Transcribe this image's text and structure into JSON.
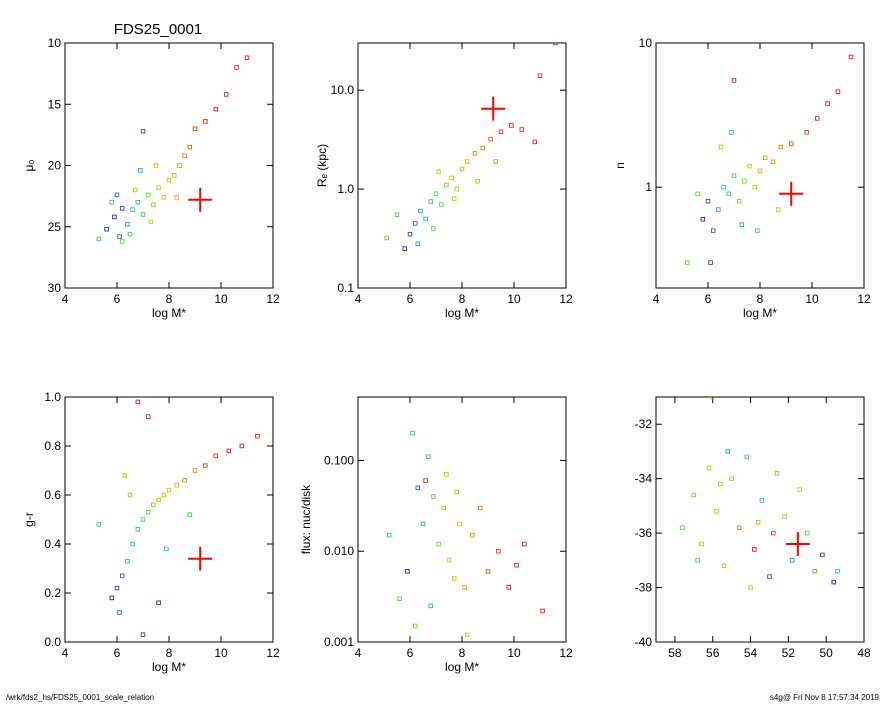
{
  "figure_title": "FDS25_0001",
  "footer": {
    "left": "/wrk/fds2_hs/FDS25_0001_scale_relation",
    "right": "s4g@  Fri Nov  8 17:57:34 2019"
  },
  "colors": {
    "marker": "#ff0000",
    "axes": "#000000"
  },
  "chart_data": [
    {
      "type": "scatter",
      "xlabel": "log M*",
      "ylabel": "μ₀",
      "xlim": [
        4,
        12
      ],
      "ylim": [
        30,
        10
      ],
      "x_ticks": [
        "4",
        "6",
        "8",
        "10",
        "12"
      ],
      "y_ticks": [
        "10",
        "15",
        "20",
        "25",
        "30"
      ],
      "marker": {
        "x": 9.2,
        "y": 22.8
      },
      "points": [
        {
          "x": 5.6,
          "y": 25.2,
          "c": "#2020c8"
        },
        {
          "x": 5.9,
          "y": 24.2,
          "c": "#2020c8"
        },
        {
          "x": 6.2,
          "y": 23.5,
          "c": "#3040d0"
        },
        {
          "x": 6.0,
          "y": 22.4,
          "c": "#3060e0"
        },
        {
          "x": 6.4,
          "y": 24.8,
          "c": "#20a0e0"
        },
        {
          "x": 6.6,
          "y": 23.6,
          "c": "#20c0c0"
        },
        {
          "x": 6.8,
          "y": 23.0,
          "c": "#20c0c0"
        },
        {
          "x": 7.0,
          "y": 24.0,
          "c": "#30d060"
        },
        {
          "x": 6.5,
          "y": 25.6,
          "c": "#40e040"
        },
        {
          "x": 7.2,
          "y": 22.4,
          "c": "#60e020"
        },
        {
          "x": 7.4,
          "y": 23.2,
          "c": "#80e000"
        },
        {
          "x": 7.6,
          "y": 21.8,
          "c": "#a0e000"
        },
        {
          "x": 7.8,
          "y": 22.6,
          "c": "#c0d000"
        },
        {
          "x": 8.0,
          "y": 21.2,
          "c": "#d0c000"
        },
        {
          "x": 8.2,
          "y": 20.8,
          "c": "#e0b000"
        },
        {
          "x": 8.4,
          "y": 20.0,
          "c": "#e09000"
        },
        {
          "x": 8.6,
          "y": 19.2,
          "c": "#e08000"
        },
        {
          "x": 8.8,
          "y": 18.5,
          "c": "#e06000"
        },
        {
          "x": 9.0,
          "y": 17.0,
          "c": "#e04000"
        },
        {
          "x": 9.4,
          "y": 16.4,
          "c": "#e03000"
        },
        {
          "x": 9.8,
          "y": 15.4,
          "c": "#e02020"
        },
        {
          "x": 10.2,
          "y": 14.2,
          "c": "#e02020"
        },
        {
          "x": 10.6,
          "y": 12.0,
          "c": "#e02020"
        },
        {
          "x": 11.0,
          "y": 11.2,
          "c": "#e02020"
        },
        {
          "x": 11.5,
          "y": 9.2,
          "c": "#e02020"
        },
        {
          "x": 7.0,
          "y": 17.2,
          "c": "#3040d0"
        },
        {
          "x": 6.9,
          "y": 20.4,
          "c": "#20a0e0"
        },
        {
          "x": 7.5,
          "y": 20.0,
          "c": "#d0c000"
        },
        {
          "x": 5.3,
          "y": 26.0,
          "c": "#30d060"
        },
        {
          "x": 6.2,
          "y": 26.2,
          "c": "#60e020"
        },
        {
          "x": 7.3,
          "y": 24.6,
          "c": "#c0d000"
        },
        {
          "x": 8.3,
          "y": 22.6,
          "c": "#e0b000"
        },
        {
          "x": 6.7,
          "y": 22.0,
          "c": "#c0d000"
        },
        {
          "x": 5.8,
          "y": 23.0,
          "c": "#20c0c0"
        },
        {
          "x": 6.1,
          "y": 25.8,
          "c": "#3060e0"
        }
      ]
    },
    {
      "type": "scatter",
      "xlabel": "log M*",
      "ylabel": "Rₑ (kpc)",
      "yscale": "log",
      "xlim": [
        4,
        12
      ],
      "ylim": [
        0.1,
        30
      ],
      "x_ticks": [
        "4",
        "6",
        "8",
        "10",
        "12"
      ],
      "y_ticks": [
        "0.1",
        "1.0",
        "10.0"
      ],
      "marker": {
        "x": 9.2,
        "y": 6.5
      },
      "points": [
        {
          "x": 5.8,
          "y": 0.25,
          "c": "#2020c8"
        },
        {
          "x": 6.0,
          "y": 0.35,
          "c": "#3040d0"
        },
        {
          "x": 6.2,
          "y": 0.45,
          "c": "#3060e0"
        },
        {
          "x": 6.4,
          "y": 0.6,
          "c": "#20a0e0"
        },
        {
          "x": 6.6,
          "y": 0.5,
          "c": "#20c0c0"
        },
        {
          "x": 6.8,
          "y": 0.75,
          "c": "#30d060"
        },
        {
          "x": 7.0,
          "y": 0.9,
          "c": "#40e040"
        },
        {
          "x": 7.2,
          "y": 0.7,
          "c": "#60e020"
        },
        {
          "x": 7.4,
          "y": 1.1,
          "c": "#80e000"
        },
        {
          "x": 7.6,
          "y": 1.3,
          "c": "#a0e000"
        },
        {
          "x": 7.8,
          "y": 1.0,
          "c": "#c0d000"
        },
        {
          "x": 8.0,
          "y": 1.6,
          "c": "#d0c000"
        },
        {
          "x": 8.2,
          "y": 1.9,
          "c": "#e0b000"
        },
        {
          "x": 8.5,
          "y": 2.3,
          "c": "#e09000"
        },
        {
          "x": 8.8,
          "y": 2.6,
          "c": "#e08000"
        },
        {
          "x": 9.1,
          "y": 3.2,
          "c": "#e06000"
        },
        {
          "x": 9.5,
          "y": 3.8,
          "c": "#e04000"
        },
        {
          "x": 9.9,
          "y": 4.4,
          "c": "#e02020"
        },
        {
          "x": 10.3,
          "y": 4.0,
          "c": "#e02020"
        },
        {
          "x": 10.8,
          "y": 3.0,
          "c": "#e02020"
        },
        {
          "x": 11.0,
          "y": 14.0,
          "c": "#e02020"
        },
        {
          "x": 11.6,
          "y": 30.0,
          "c": "#e02020"
        },
        {
          "x": 5.5,
          "y": 0.55,
          "c": "#30d060"
        },
        {
          "x": 6.3,
          "y": 0.28,
          "c": "#20a0e0"
        },
        {
          "x": 7.1,
          "y": 1.5,
          "c": "#c0d000"
        },
        {
          "x": 6.9,
          "y": 0.4,
          "c": "#40e040"
        },
        {
          "x": 7.7,
          "y": 0.8,
          "c": "#a0e000"
        },
        {
          "x": 8.6,
          "y": 1.2,
          "c": "#e0b000"
        },
        {
          "x": 5.1,
          "y": 0.32,
          "c": "#60e020"
        },
        {
          "x": 9.3,
          "y": 1.9,
          "c": "#e09000"
        }
      ]
    },
    {
      "type": "scatter",
      "xlabel": "log M*",
      "ylabel": "n",
      "yscale": "log",
      "xlim": [
        4,
        12
      ],
      "ylim": [
        0.2,
        10
      ],
      "x_ticks": [
        "4",
        "6",
        "8",
        "10",
        "12"
      ],
      "y_ticks": [
        "1",
        "10"
      ],
      "marker": {
        "x": 9.2,
        "y": 0.9
      },
      "points": [
        {
          "x": 5.8,
          "y": 0.6,
          "c": "#2020c8"
        },
        {
          "x": 6.0,
          "y": 0.8,
          "c": "#3040d0"
        },
        {
          "x": 6.2,
          "y": 0.5,
          "c": "#3060e0"
        },
        {
          "x": 6.4,
          "y": 0.7,
          "c": "#20a0e0"
        },
        {
          "x": 6.6,
          "y": 1.0,
          "c": "#20c0c0"
        },
        {
          "x": 6.8,
          "y": 0.9,
          "c": "#30d060"
        },
        {
          "x": 7.0,
          "y": 1.2,
          "c": "#40e040"
        },
        {
          "x": 7.2,
          "y": 0.8,
          "c": "#60e020"
        },
        {
          "x": 7.4,
          "y": 1.1,
          "c": "#80e000"
        },
        {
          "x": 7.6,
          "y": 1.4,
          "c": "#a0e000"
        },
        {
          "x": 7.8,
          "y": 1.0,
          "c": "#c0d000"
        },
        {
          "x": 8.0,
          "y": 1.3,
          "c": "#d0c000"
        },
        {
          "x": 8.2,
          "y": 1.6,
          "c": "#e0b000"
        },
        {
          "x": 8.5,
          "y": 1.5,
          "c": "#e09000"
        },
        {
          "x": 8.8,
          "y": 1.9,
          "c": "#e08000"
        },
        {
          "x": 9.2,
          "y": 2.0,
          "c": "#e06000"
        },
        {
          "x": 9.8,
          "y": 2.4,
          "c": "#e04000"
        },
        {
          "x": 10.2,
          "y": 3.0,
          "c": "#e02020"
        },
        {
          "x": 10.6,
          "y": 3.8,
          "c": "#e02020"
        },
        {
          "x": 11.0,
          "y": 4.6,
          "c": "#e02020"
        },
        {
          "x": 11.5,
          "y": 8.0,
          "c": "#e02020"
        },
        {
          "x": 7.0,
          "y": 5.5,
          "c": "#e02020"
        },
        {
          "x": 5.2,
          "y": 0.3,
          "c": "#40e040"
        },
        {
          "x": 6.1,
          "y": 0.3,
          "c": "#3040d0"
        },
        {
          "x": 6.9,
          "y": 2.4,
          "c": "#20c0c0"
        },
        {
          "x": 7.9,
          "y": 0.5,
          "c": "#40e040"
        },
        {
          "x": 5.6,
          "y": 0.9,
          "c": "#60e020"
        },
        {
          "x": 8.7,
          "y": 0.7,
          "c": "#c0d000"
        },
        {
          "x": 6.5,
          "y": 1.9,
          "c": "#e0b000"
        },
        {
          "x": 7.3,
          "y": 0.55,
          "c": "#20a0e0"
        }
      ]
    },
    {
      "type": "scatter",
      "xlabel": "log M*",
      "ylabel": "g-r",
      "xlim": [
        4,
        12
      ],
      "ylim": [
        0.0,
        1.0
      ],
      "x_ticks": [
        "4",
        "6",
        "8",
        "10",
        "12"
      ],
      "y_ticks": [
        "0.0",
        "0.2",
        "0.4",
        "0.6",
        "0.8",
        "1.0"
      ],
      "marker": {
        "x": 9.2,
        "y": 0.34
      },
      "points": [
        {
          "x": 5.8,
          "y": 0.18,
          "c": "#2020c8"
        },
        {
          "x": 6.0,
          "y": 0.22,
          "c": "#3040d0"
        },
        {
          "x": 6.2,
          "y": 0.27,
          "c": "#3060e0"
        },
        {
          "x": 6.4,
          "y": 0.33,
          "c": "#20a0e0"
        },
        {
          "x": 6.6,
          "y": 0.4,
          "c": "#20c0c0"
        },
        {
          "x": 6.8,
          "y": 0.46,
          "c": "#30d060"
        },
        {
          "x": 7.0,
          "y": 0.5,
          "c": "#40e040"
        },
        {
          "x": 7.2,
          "y": 0.53,
          "c": "#60e020"
        },
        {
          "x": 7.4,
          "y": 0.56,
          "c": "#80e000"
        },
        {
          "x": 7.6,
          "y": 0.58,
          "c": "#a0e000"
        },
        {
          "x": 7.8,
          "y": 0.6,
          "c": "#c0d000"
        },
        {
          "x": 8.0,
          "y": 0.62,
          "c": "#d0c000"
        },
        {
          "x": 8.3,
          "y": 0.64,
          "c": "#e0b000"
        },
        {
          "x": 8.6,
          "y": 0.66,
          "c": "#e09000"
        },
        {
          "x": 9.0,
          "y": 0.7,
          "c": "#e08000"
        },
        {
          "x": 9.4,
          "y": 0.72,
          "c": "#e06000"
        },
        {
          "x": 9.8,
          "y": 0.76,
          "c": "#e04000"
        },
        {
          "x": 10.3,
          "y": 0.78,
          "c": "#e02020"
        },
        {
          "x": 10.8,
          "y": 0.8,
          "c": "#e02020"
        },
        {
          "x": 11.4,
          "y": 0.84,
          "c": "#e02020"
        },
        {
          "x": 6.8,
          "y": 0.98,
          "c": "#e02020"
        },
        {
          "x": 7.2,
          "y": 0.92,
          "c": "#e02020"
        },
        {
          "x": 6.5,
          "y": 0.6,
          "c": "#e0b000"
        },
        {
          "x": 7.0,
          "y": 0.03,
          "c": "#3040d0"
        },
        {
          "x": 6.1,
          "y": 0.12,
          "c": "#3060e0"
        },
        {
          "x": 7.6,
          "y": 0.16,
          "c": "#2020c8"
        },
        {
          "x": 5.3,
          "y": 0.48,
          "c": "#40e040"
        },
        {
          "x": 8.8,
          "y": 0.52,
          "c": "#40e040"
        },
        {
          "x": 7.9,
          "y": 0.38,
          "c": "#20c0c0"
        },
        {
          "x": 6.3,
          "y": 0.68,
          "c": "#d0c000"
        }
      ]
    },
    {
      "type": "scatter",
      "xlabel": "log M*",
      "ylabel": "flux: nuc/disk",
      "yscale": "log",
      "xlim": [
        4,
        12
      ],
      "ylim": [
        0.001,
        0.5
      ],
      "x_ticks": [
        "4",
        "6",
        "8",
        "10",
        "12"
      ],
      "y_ticks": [
        "0.001",
        "0.010",
        "0.100"
      ],
      "points": [
        {
          "x": 5.9,
          "y": 0.006,
          "c": "#2020c8"
        },
        {
          "x": 6.1,
          "y": 0.2,
          "c": "#20c0c0"
        },
        {
          "x": 6.3,
          "y": 0.05,
          "c": "#3060e0"
        },
        {
          "x": 6.5,
          "y": 0.02,
          "c": "#20a0e0"
        },
        {
          "x": 6.7,
          "y": 0.11,
          "c": "#30d060"
        },
        {
          "x": 6.9,
          "y": 0.04,
          "c": "#40e040"
        },
        {
          "x": 7.1,
          "y": 0.012,
          "c": "#60e020"
        },
        {
          "x": 7.3,
          "y": 0.03,
          "c": "#80e000"
        },
        {
          "x": 7.5,
          "y": 0.008,
          "c": "#a0e000"
        },
        {
          "x": 7.7,
          "y": 0.005,
          "c": "#c0d000"
        },
        {
          "x": 7.9,
          "y": 0.02,
          "c": "#d0c000"
        },
        {
          "x": 8.1,
          "y": 0.004,
          "c": "#e0b000"
        },
        {
          "x": 8.4,
          "y": 0.015,
          "c": "#e09000"
        },
        {
          "x": 8.7,
          "y": 0.03,
          "c": "#e08000"
        },
        {
          "x": 9.0,
          "y": 0.006,
          "c": "#e06000"
        },
        {
          "x": 9.4,
          "y": 0.01,
          "c": "#e04000"
        },
        {
          "x": 9.8,
          "y": 0.004,
          "c": "#e02020"
        },
        {
          "x": 10.1,
          "y": 0.007,
          "c": "#e02020"
        },
        {
          "x": 10.4,
          "y": 0.012,
          "c": "#e02020"
        },
        {
          "x": 11.1,
          "y": 0.0022,
          "c": "#e02020"
        },
        {
          "x": 6.6,
          "y": 0.06,
          "c": "#e02020"
        },
        {
          "x": 5.6,
          "y": 0.003,
          "c": "#40e040"
        },
        {
          "x": 6.2,
          "y": 0.0015,
          "c": "#60e020"
        },
        {
          "x": 8.2,
          "y": 0.0012,
          "c": "#c0d000"
        },
        {
          "x": 7.4,
          "y": 0.07,
          "c": "#d0c000"
        },
        {
          "x": 5.2,
          "y": 0.015,
          "c": "#30d060"
        },
        {
          "x": 7.8,
          "y": 0.045,
          "c": "#e0b000"
        },
        {
          "x": 6.8,
          "y": 0.0025,
          "c": "#20c0c0"
        }
      ]
    },
    {
      "type": "scatter",
      "xlim": [
        59,
        48
      ],
      "ylim": [
        -40,
        -31
      ],
      "x_ticks": [
        "58",
        "56",
        "54",
        "52",
        "50",
        "48"
      ],
      "y_ticks": [
        "-40",
        "-38",
        "-36",
        "-34",
        "-32"
      ],
      "marker": {
        "x": 51.5,
        "y": -36.4
      },
      "points": [
        {
          "x": 57.6,
          "y": -35.8,
          "c": "#40e040"
        },
        {
          "x": 57.0,
          "y": -34.6,
          "c": "#60e020"
        },
        {
          "x": 56.6,
          "y": -36.4,
          "c": "#80e000"
        },
        {
          "x": 56.2,
          "y": -33.6,
          "c": "#a0e000"
        },
        {
          "x": 55.8,
          "y": -35.2,
          "c": "#c0d000"
        },
        {
          "x": 55.4,
          "y": -37.2,
          "c": "#d0c000"
        },
        {
          "x": 55.0,
          "y": -34.0,
          "c": "#e0b000"
        },
        {
          "x": 54.6,
          "y": -35.8,
          "c": "#e09000"
        },
        {
          "x": 54.2,
          "y": -33.2,
          "c": "#40e040"
        },
        {
          "x": 53.8,
          "y": -36.6,
          "c": "#e02020"
        },
        {
          "x": 53.4,
          "y": -34.8,
          "c": "#20c0c0"
        },
        {
          "x": 53.0,
          "y": -37.6,
          "c": "#3060e0"
        },
        {
          "x": 52.6,
          "y": -33.8,
          "c": "#60e020"
        },
        {
          "x": 52.2,
          "y": -35.4,
          "c": "#a0e000"
        },
        {
          "x": 51.8,
          "y": -37.0,
          "c": "#20a0e0"
        },
        {
          "x": 51.4,
          "y": -34.4,
          "c": "#c0d000"
        },
        {
          "x": 51.0,
          "y": -36.0,
          "c": "#40e040"
        },
        {
          "x": 50.6,
          "y": -37.4,
          "c": "#e08000"
        },
        {
          "x": 50.2,
          "y": -36.8,
          "c": "#3040d0"
        },
        {
          "x": 49.6,
          "y": -37.8,
          "c": "#2020c8"
        },
        {
          "x": 49.4,
          "y": -37.4,
          "c": "#20c0c0"
        },
        {
          "x": 56.0,
          "y": -31.0,
          "c": "#d0c000"
        },
        {
          "x": 55.2,
          "y": -33.0,
          "c": "#20a0e0"
        },
        {
          "x": 54.0,
          "y": -38.0,
          "c": "#c0d000"
        },
        {
          "x": 52.8,
          "y": -36.0,
          "c": "#e04000"
        },
        {
          "x": 56.8,
          "y": -37.0,
          "c": "#30d060"
        },
        {
          "x": 53.6,
          "y": -35.6,
          "c": "#e0b000"
        },
        {
          "x": 55.6,
          "y": -34.2,
          "c": "#80e000"
        }
      ]
    }
  ]
}
